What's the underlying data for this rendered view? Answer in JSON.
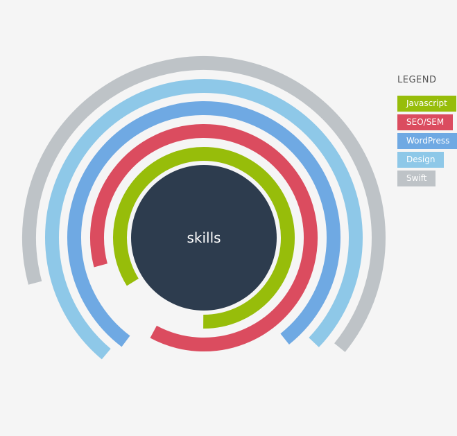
{
  "chart_data": {
    "type": "radial-bar",
    "center_label": "skills",
    "legend_title": "LEGEND",
    "series": [
      {
        "name": "Javascript",
        "color": "#97bd0a",
        "value_percent": 84
      },
      {
        "name": "SEO/SEM",
        "color": "#db4c5f",
        "value_percent": 87
      },
      {
        "name": "WordPress",
        "color": "#6fa9e3",
        "value_percent": 79
      },
      {
        "name": "Design",
        "color": "#8ec8e8",
        "value_percent": 76
      },
      {
        "name": "Swift",
        "color": "#bec3c7",
        "value_percent": 65
      }
    ],
    "center_color": "#2d3c4e",
    "background": "#f5f5f5"
  }
}
